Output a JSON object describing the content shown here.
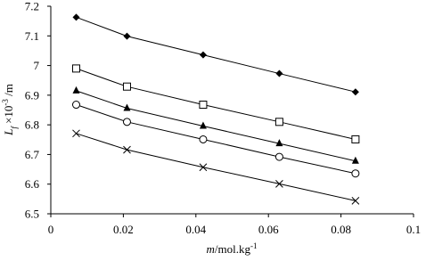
{
  "chart_data": {
    "type": "scatter",
    "xlabel": [
      {
        "text": "m",
        "style": "italic"
      },
      {
        "text": "/mol.kg"
      },
      {
        "text": "-1",
        "style": "sup"
      }
    ],
    "ylabel": [
      {
        "text": "L",
        "style": "italic"
      },
      {
        "text": "f",
        "style": "sub"
      },
      {
        "text": " ×10"
      },
      {
        "text": "-3",
        "style": "sup"
      },
      {
        "text": " /m"
      }
    ],
    "x": [
      0.007,
      0.021,
      0.042,
      0.063,
      0.084
    ],
    "series": [
      {
        "marker": "diamond",
        "color": "#000000",
        "values": [
          7.163,
          7.099,
          7.036,
          6.973,
          6.911
        ]
      },
      {
        "marker": "square-open",
        "color": "#000000",
        "values": [
          6.99,
          6.929,
          6.868,
          6.81,
          6.751
        ]
      },
      {
        "marker": "triangle",
        "color": "#000000",
        "values": [
          6.915,
          6.856,
          6.796,
          6.737,
          6.678
        ]
      },
      {
        "marker": "circle-open",
        "color": "#000000",
        "values": [
          6.868,
          6.81,
          6.751,
          6.692,
          6.636
        ]
      },
      {
        "marker": "x",
        "color": "#000000",
        "values": [
          6.771,
          6.716,
          6.657,
          6.601,
          6.544
        ]
      }
    ],
    "xlim": [
      0,
      0.1
    ],
    "xticks": [
      0,
      0.02,
      0.04,
      0.06,
      0.08,
      0.1
    ],
    "ylim": [
      6.5,
      7.2
    ],
    "yticks": [
      6.5,
      6.6,
      6.7,
      6.8,
      6.9,
      7,
      7.1,
      7.2
    ],
    "grid": false
  }
}
